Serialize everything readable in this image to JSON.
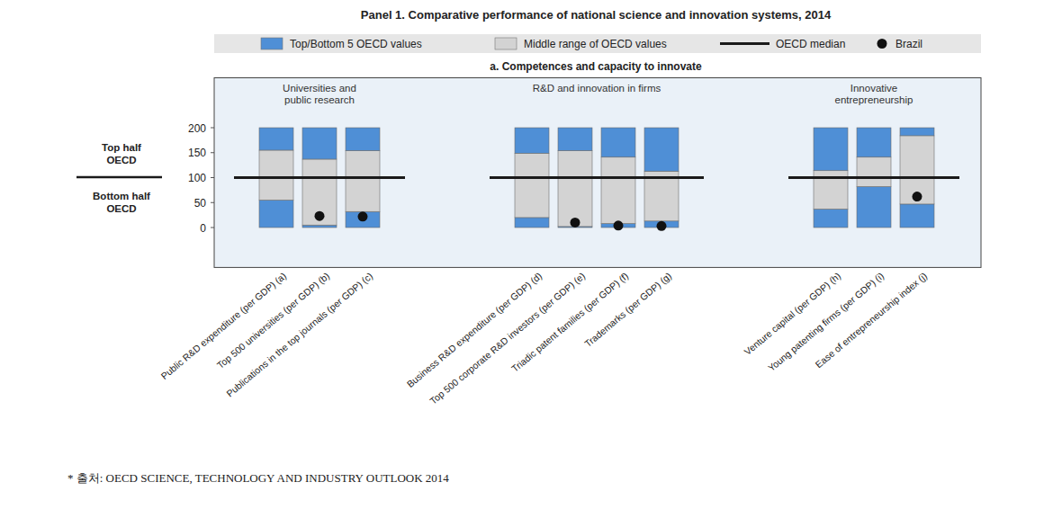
{
  "chart_data": {
    "type": "bar",
    "stacked": true,
    "title": "Panel 1. Comparative performance of national science and innovation systems, 2014",
    "subtitle": "a. Competences and capacity to innovate",
    "groups": [
      {
        "label": "Universities and\npublic research",
        "count": 3
      },
      {
        "label": "R&D and innovation in firms",
        "count": 4
      },
      {
        "label": "Innovative\nentrepreneurship",
        "count": 3
      }
    ],
    "categories": [
      "Public R&D expenditure (per GDP) (a)",
      "Top 500 universities (per GDP) (b)",
      "Publications in the top journals (per GDP) (c)",
      "Business R&D expenditure (per GDP) (d)",
      "Top 500 corporate R&D investors (per GDP) (e)",
      "Triadic patent families (per GDP) (f)",
      "Trademarks (per GDP) (g)",
      "Venture capital (per GDP) (h)",
      "Young patenting firms (per GDP) (i)",
      "Ease of entrepreneurship index (j)"
    ],
    "series": [
      {
        "name": "Top/Bottom 5 OECD values",
        "type": "bar",
        "color": "#4f8fd6",
        "values": [
          55,
          5,
          32,
          20,
          2,
          8,
          13,
          37,
          82,
          47
        ]
      },
      {
        "name": "Middle range of OECD values",
        "type": "bar",
        "color": "#d3d3d3",
        "values": [
          100,
          132,
          122,
          129,
          152,
          133,
          100,
          77,
          59,
          137
        ]
      },
      {
        "name": "Top/Bottom 5 OECD values",
        "type": "bar",
        "color": "#4f8fd6",
        "values": [
          45,
          63,
          46,
          51,
          46,
          59,
          87,
          86,
          59,
          16
        ]
      },
      {
        "name": "OECD median",
        "type": "line",
        "color": "#1a1a1a",
        "line_style": "solid",
        "values": [
          100,
          100,
          100,
          100,
          100,
          100,
          100,
          100,
          100,
          100
        ]
      },
      {
        "name": "Brazil",
        "type": "scatter",
        "color": "#111111",
        "marker": "circle",
        "values": [
          null,
          23,
          22,
          null,
          10,
          4,
          3,
          null,
          null,
          62
        ]
      }
    ],
    "ylim": [
      -80,
      300
    ],
    "yticks": [
      0,
      50,
      100,
      150,
      200
    ],
    "grid": false,
    "legend": "top",
    "annotations": [
      "Top half\nOECD",
      "Bottom half\nOECD"
    ],
    "source": "* 출처: OECD SCIENCE, TECHNOLOGY AND INDUSTRY OUTLOOK 2014"
  }
}
